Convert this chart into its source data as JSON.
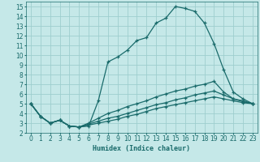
{
  "xlabel": "Humidex (Indice chaleur)",
  "xlim": [
    -0.5,
    23.5
  ],
  "ylim": [
    2,
    15.5
  ],
  "xticks": [
    0,
    1,
    2,
    3,
    4,
    5,
    6,
    7,
    8,
    9,
    10,
    11,
    12,
    13,
    14,
    15,
    16,
    17,
    18,
    19,
    20,
    21,
    22,
    23
  ],
  "yticks": [
    2,
    3,
    4,
    5,
    6,
    7,
    8,
    9,
    10,
    11,
    12,
    13,
    14,
    15
  ],
  "background_color": "#c5e8e8",
  "grid_color": "#9ecece",
  "line_color": "#1a6b6b",
  "lines": [
    {
      "x": [
        0,
        1,
        2,
        3,
        4,
        5,
        6,
        7,
        8,
        9,
        10,
        11,
        12,
        13,
        14,
        15,
        16,
        17,
        18,
        19,
        20,
        21,
        22,
        23
      ],
      "y": [
        5.0,
        3.7,
        3.0,
        3.3,
        2.7,
        2.6,
        2.7,
        5.3,
        9.3,
        9.8,
        10.5,
        11.5,
        11.8,
        13.3,
        13.8,
        15.0,
        14.8,
        14.5,
        13.3,
        11.2,
        8.5,
        6.2,
        5.5,
        5.0
      ]
    },
    {
      "x": [
        0,
        1,
        2,
        3,
        4,
        5,
        6,
        7,
        8,
        9,
        10,
        11,
        12,
        13,
        14,
        15,
        16,
        17,
        18,
        19,
        20,
        21,
        22,
        23
      ],
      "y": [
        5.0,
        3.7,
        3.0,
        3.3,
        2.7,
        2.6,
        3.0,
        3.5,
        4.0,
        4.3,
        4.7,
        5.0,
        5.3,
        5.7,
        6.0,
        6.3,
        6.5,
        6.8,
        7.0,
        7.3,
        6.2,
        5.5,
        5.3,
        5.0
      ]
    },
    {
      "x": [
        0,
        1,
        2,
        3,
        4,
        5,
        6,
        7,
        8,
        9,
        10,
        11,
        12,
        13,
        14,
        15,
        16,
        17,
        18,
        19,
        20,
        21,
        22,
        23
      ],
      "y": [
        5.0,
        3.7,
        3.0,
        3.3,
        2.7,
        2.6,
        2.9,
        3.2,
        3.5,
        3.7,
        4.0,
        4.3,
        4.6,
        4.9,
        5.1,
        5.4,
        5.6,
        5.9,
        6.1,
        6.3,
        5.9,
        5.5,
        5.2,
        5.0
      ]
    },
    {
      "x": [
        0,
        1,
        2,
        3,
        4,
        5,
        6,
        7,
        8,
        9,
        10,
        11,
        12,
        13,
        14,
        15,
        16,
        17,
        18,
        19,
        20,
        21,
        22,
        23
      ],
      "y": [
        5.0,
        3.7,
        3.0,
        3.3,
        2.7,
        2.6,
        2.8,
        3.0,
        3.2,
        3.4,
        3.7,
        3.9,
        4.2,
        4.5,
        4.7,
        4.9,
        5.1,
        5.3,
        5.5,
        5.7,
        5.5,
        5.3,
        5.1,
        5.0
      ]
    }
  ]
}
